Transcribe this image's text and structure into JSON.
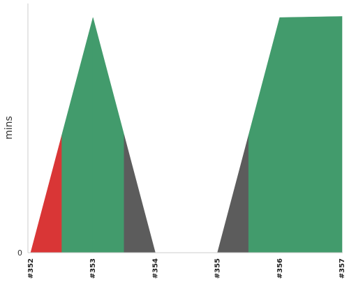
{
  "chart_data": {
    "type": "area",
    "categories": [
      "#352",
      "#353",
      "#354",
      "#355",
      "#356",
      "#357"
    ],
    "xlabel": "",
    "ylabel": "mins",
    "y_tick_labels": [
      "0"
    ],
    "grid": false,
    "legend": "none",
    "note": "Area color shows build status per segment between builds",
    "segments": [
      {
        "from": 0.0,
        "to": 0.5,
        "status": "failed",
        "color": "#d93636",
        "y_start": 0,
        "y_end": 5
      },
      {
        "from": 0.5,
        "to": 1.0,
        "status": "success",
        "color": "#429b6c",
        "y_start": 5,
        "y_end": 10
      },
      {
        "from": 1.0,
        "to": 1.5,
        "status": "success",
        "color": "#429b6c",
        "y_start": 10,
        "y_end": 5
      },
      {
        "from": 1.5,
        "to": 2.0,
        "status": "aborted",
        "color": "#5c5c5c",
        "y_start": 5,
        "y_end": 0
      },
      {
        "from": 3.0,
        "to": 3.5,
        "status": "aborted",
        "color": "#5c5c5c",
        "y_start": 0,
        "y_end": 5
      },
      {
        "from": 3.5,
        "to": 4.0,
        "status": "success",
        "color": "#429b6c",
        "y_start": 5,
        "y_end": 10
      },
      {
        "from": 4.0,
        "to": 5.0,
        "status": "success",
        "color": "#429b6c",
        "y_start": 10,
        "y_end": 10.05
      }
    ],
    "xlim": [
      0,
      5
    ],
    "ylim": [
      0,
      10.6
    ]
  }
}
